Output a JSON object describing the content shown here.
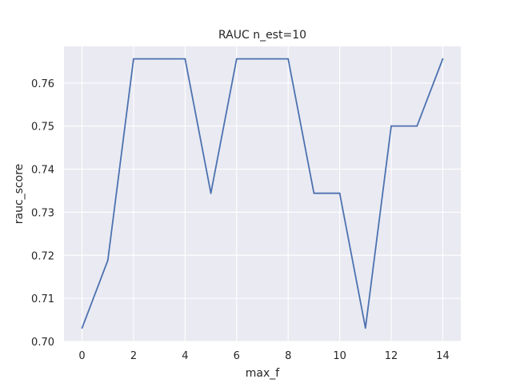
{
  "chart_data": {
    "type": "line",
    "title": "RAUC n_est=10",
    "xlabel": "max_f",
    "ylabel": "rauc_score",
    "xlim": [
      -0.7,
      14.7
    ],
    "ylim": [
      0.7,
      0.7685
    ],
    "x_ticks": [
      0,
      2,
      4,
      6,
      8,
      10,
      12,
      14
    ],
    "x_tick_labels": [
      "0",
      "2",
      "4",
      "6",
      "8",
      "10",
      "12",
      "14"
    ],
    "y_ticks": [
      0.7,
      0.71,
      0.72,
      0.73,
      0.74,
      0.75,
      0.76
    ],
    "y_tick_labels": [
      "0.70",
      "0.71",
      "0.72",
      "0.73",
      "0.74",
      "0.75",
      "0.76"
    ],
    "grid": true,
    "background_color": "#eaeaf2",
    "grid_color": "#ffffff",
    "series": [
      {
        "color": "#4c72b0",
        "x": [
          0,
          1,
          2,
          3,
          4,
          5,
          6,
          7,
          8,
          9,
          10,
          11,
          12,
          13,
          14
        ],
        "values": [
          0.7031,
          0.7188,
          0.7656,
          0.7656,
          0.7656,
          0.7344,
          0.7656,
          0.7656,
          0.7656,
          0.7344,
          0.7344,
          0.7031,
          0.75,
          0.75,
          0.7656
        ]
      }
    ]
  }
}
